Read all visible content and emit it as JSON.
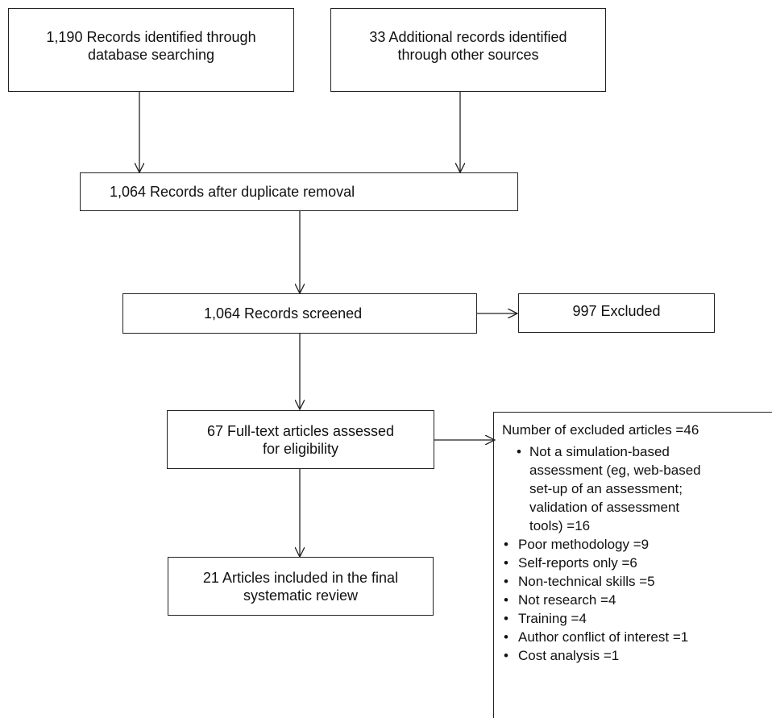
{
  "flow": {
    "db_search": [
      "1,190 Records identified through",
      "database searching"
    ],
    "other_sources": [
      "33 Additional records identified",
      "through other sources"
    ],
    "dedup": "1,064 Records after duplicate removal",
    "screened": "1,064 Records screened",
    "excluded": "997 Excluded",
    "fulltext": [
      "67 Full-text articles assessed",
      "for eligibility"
    ],
    "included": [
      "21 Articles included in the final",
      "systematic review"
    ]
  },
  "exclusions": {
    "title": "Number of excluded articles =46",
    "items": [
      "Not a simulation-based assessment (eg, web-based set-up of an assessment; validation of assessment tools) =16",
      "Poor methodology =9",
      "Self-reports only =6",
      "Non-technical skills =5",
      "Not research =4",
      "Training =4",
      "Author conflict of interest =1",
      "Cost analysis =1"
    ]
  }
}
